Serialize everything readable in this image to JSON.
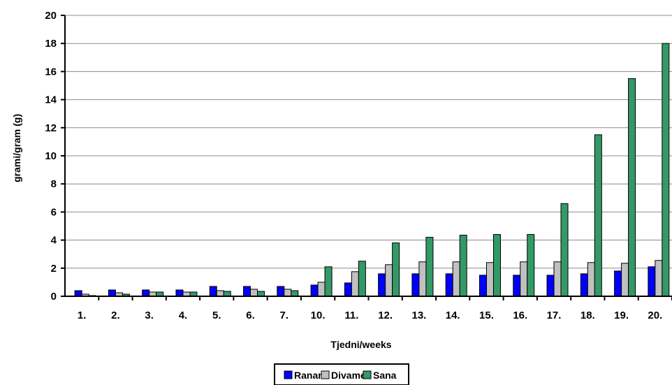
{
  "chart_data": {
    "type": "bar",
    "title": "",
    "xlabel": "Tjedni/weeks",
    "ylabel": "grami/gram (g)",
    "ylim": [
      0,
      20
    ],
    "yticks": [
      "0",
      "2",
      "4",
      "6",
      "8",
      "10",
      "12",
      "14",
      "16",
      "18",
      "20"
    ],
    "grid": true,
    "legend_position": "bottom",
    "categories": [
      "1.",
      "2.",
      "3.",
      "4.",
      "5.",
      "6.",
      "7.",
      "10.",
      "11.",
      "12.",
      "13.",
      "14.",
      "15.",
      "16.",
      "17.",
      "18.",
      "19.",
      "20."
    ],
    "series": [
      {
        "name": "Ranan",
        "color": "#0000ff",
        "values": [
          0.4,
          0.45,
          0.45,
          0.45,
          0.7,
          0.7,
          0.7,
          0.8,
          0.95,
          1.6,
          1.6,
          1.6,
          1.5,
          1.5,
          1.5,
          1.6,
          1.8,
          2.1
        ]
      },
      {
        "name": "Divame",
        "color": "#c0c0c0",
        "values": [
          0.15,
          0.25,
          0.3,
          0.3,
          0.4,
          0.5,
          0.5,
          1.0,
          1.75,
          2.25,
          2.45,
          2.45,
          2.4,
          2.45,
          2.45,
          2.4,
          2.35,
          2.55
        ]
      },
      {
        "name": "Sana",
        "color": "#339966",
        "values": [
          0.05,
          0.15,
          0.3,
          0.3,
          0.35,
          0.35,
          0.4,
          2.1,
          2.5,
          3.8,
          4.2,
          4.35,
          4.4,
          4.4,
          6.6,
          11.5,
          15.5,
          18.0
        ]
      }
    ]
  }
}
